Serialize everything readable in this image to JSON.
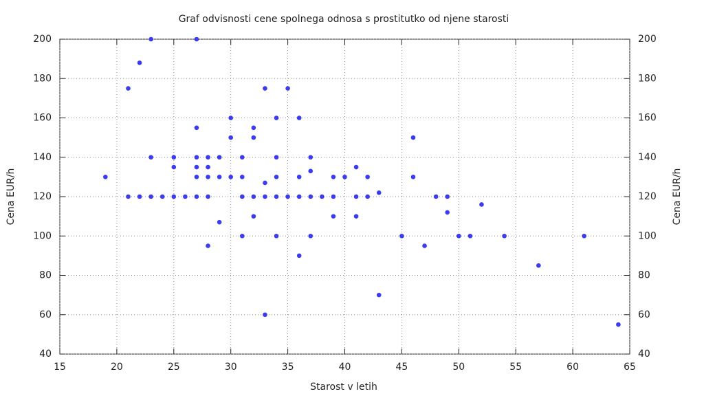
{
  "chart_data": {
    "type": "scatter",
    "title": "Graf odvisnosti cene spolnega odnosa s prostitutko od njene starosti",
    "x_label": "Starost v letih",
    "y_label": "Cena EUR/h",
    "y2_label": "Cena EUR/h",
    "color": "#3b3bf0",
    "grid": true,
    "xlim": [
      15,
      65
    ],
    "xticks": [
      15,
      20,
      25,
      30,
      35,
      40,
      45,
      50,
      55,
      60,
      65
    ],
    "ylim": [
      40,
      200
    ],
    "yticks": [
      40,
      60,
      80,
      100,
      120,
      140,
      160,
      180,
      200
    ],
    "y2lim": [
      40,
      200
    ],
    "y2ticks": [
      40,
      60,
      80,
      100,
      120,
      140,
      160,
      180,
      200
    ],
    "x": [
      19,
      21,
      21,
      22,
      22,
      23,
      23,
      23,
      24,
      25,
      25,
      25,
      26,
      27,
      27,
      27,
      27,
      27,
      27,
      28,
      28,
      28,
      28,
      28,
      29,
      29,
      29,
      30,
      30,
      30,
      31,
      31,
      31,
      31,
      32,
      32,
      32,
      32,
      33,
      33,
      33,
      33,
      34,
      34,
      34,
      34,
      34,
      35,
      35,
      36,
      36,
      36,
      36,
      37,
      37,
      37,
      37,
      38,
      39,
      39,
      39,
      40,
      41,
      41,
      41,
      42,
      42,
      43,
      43,
      45,
      46,
      46,
      47,
      48,
      49,
      49,
      50,
      51,
      52,
      54,
      57,
      61,
      64
    ],
    "values": [
      130,
      175,
      120,
      188,
      120,
      200,
      140,
      120,
      120,
      140,
      135,
      120,
      120,
      200,
      155,
      140,
      135,
      130,
      120,
      140,
      135,
      130,
      120,
      95,
      140,
      130,
      107,
      160,
      150,
      130,
      140,
      130,
      120,
      100,
      155,
      150,
      120,
      110,
      175,
      127,
      120,
      60,
      160,
      140,
      130,
      120,
      100,
      175,
      120,
      160,
      130,
      120,
      90,
      140,
      133,
      120,
      100,
      120,
      130,
      120,
      110,
      130,
      135,
      120,
      110,
      130,
      120,
      122,
      70,
      100,
      150,
      130,
      95,
      120,
      120,
      112,
      100,
      100,
      116,
      100,
      85,
      100,
      55
    ]
  }
}
